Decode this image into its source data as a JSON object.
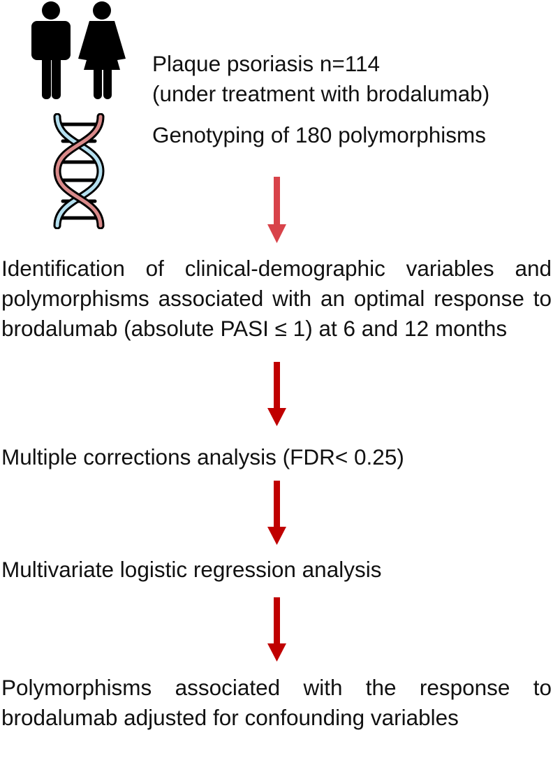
{
  "steps": {
    "population_line1": "Plaque psoriasis n=114",
    "population_line2": "(under treatment with brodalumab)",
    "genotyping": "Genotyping of 180 polymorphisms",
    "identification": "Identification of clinical-demographic variables and polymorphisms associated with an optimal response to brodalumab (absolute PASI ≤ 1) at 6 and 12 months",
    "corrections": "Multiple corrections analysis (FDR< 0.25)",
    "regression": "Multivariate logistic regression analysis",
    "result": "Polymorphisms associated with the response to brodalumab adjusted for confounding variables"
  },
  "icons": {
    "people": "man-woman-icon",
    "dna": "dna-helix-icon"
  },
  "colors": {
    "first_arrow": "#d8434a",
    "arrow": "#c00000",
    "dna_strand_a": "#d98a8a",
    "dna_strand_b": "#b5e0f0"
  }
}
